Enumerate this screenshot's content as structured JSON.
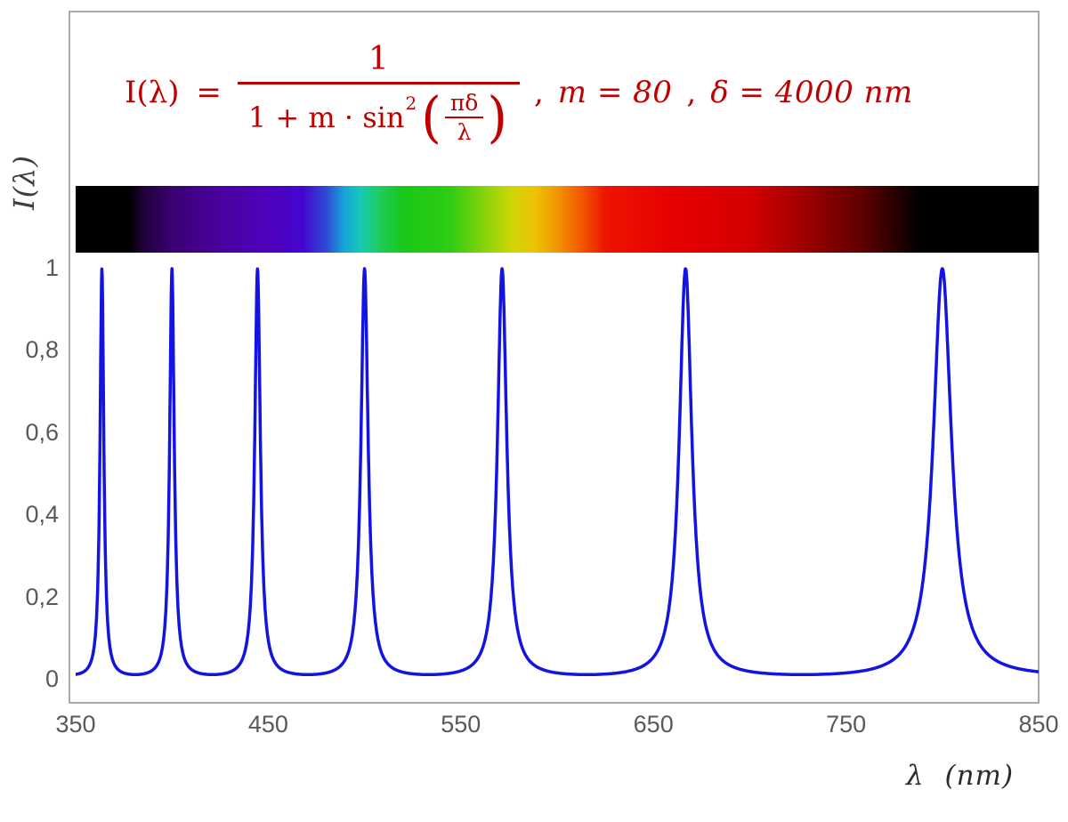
{
  "formula": {
    "lhs": "I(λ) =",
    "numerator": "1",
    "den_prefix": "1 + m · sin",
    "den_exponent": "2",
    "open_paren": "(",
    "close_paren": ")",
    "inner_numerator": "πδ",
    "inner_denominator": "λ",
    "comma1": ",",
    "m_param": "m = 80",
    "comma2": ",",
    "delta_param": "δ = 4000 nm"
  },
  "axes": {
    "ylabel": "I(λ)",
    "xlabel": "λ  (nm)"
  },
  "chart_data": {
    "type": "line",
    "title": "I(λ) = 1 / (1 + m·sin²(πδ/λ)) ,  m = 80 ,  δ = 4000 nm",
    "xlabel": "λ (nm)",
    "ylabel": "I(λ)",
    "xlim": [
      350,
      850
    ],
    "ylim": [
      0,
      1
    ],
    "grid": false,
    "legend": false,
    "x_ticks": [
      {
        "value": 350,
        "label": "350"
      },
      {
        "value": 450,
        "label": "450"
      },
      {
        "value": 550,
        "label": "550"
      },
      {
        "value": 650,
        "label": "650"
      },
      {
        "value": 750,
        "label": "750"
      },
      {
        "value": 850,
        "label": "850"
      }
    ],
    "y_ticks": [
      {
        "value": 0,
        "label": "0"
      },
      {
        "value": 0.2,
        "label": "0,2"
      },
      {
        "value": 0.4,
        "label": "0,4"
      },
      {
        "value": 0.6,
        "label": "0,6"
      },
      {
        "value": 0.8,
        "label": "0,8"
      },
      {
        "value": 1,
        "label": "1"
      }
    ],
    "function": "I(lambda) = 1 / (1 + m * sin(pi*delta/lambda)^2)",
    "params": {
      "m": 80,
      "delta_nm": 4000
    },
    "sample_step_nm": 0.2,
    "peaks_nm": [
      363.64,
      400.0,
      444.44,
      500.0,
      571.43,
      666.67,
      800.0
    ],
    "peak_value": 1.0,
    "baseline_value": 0.0123,
    "curve_color": "#1414e0",
    "curve_width": 3.5,
    "formula_color": "#c00000",
    "tick_color": "#595959",
    "border_color": "#a9a9a9",
    "spectrum_bar": {
      "visible_range_nm": [
        380,
        780
      ],
      "stops": [
        {
          "nm": 350,
          "color": "#000000"
        },
        {
          "nm": 378,
          "color": "#000000"
        },
        {
          "nm": 385,
          "color": "#1e0138"
        },
        {
          "nm": 400,
          "color": "#3a0173"
        },
        {
          "nm": 425,
          "color": "#4a019e"
        },
        {
          "nm": 450,
          "color": "#5001be"
        },
        {
          "nm": 468,
          "color": "#4406cf"
        },
        {
          "nm": 480,
          "color": "#2f4ad6"
        },
        {
          "nm": 490,
          "color": "#15a8d8"
        },
        {
          "nm": 498,
          "color": "#17c8b4"
        },
        {
          "nm": 507,
          "color": "#1ecc62"
        },
        {
          "nm": 520,
          "color": "#18c818"
        },
        {
          "nm": 545,
          "color": "#30cc12"
        },
        {
          "nm": 562,
          "color": "#86d40c"
        },
        {
          "nm": 576,
          "color": "#cdd606"
        },
        {
          "nm": 588,
          "color": "#ecc403"
        },
        {
          "nm": 598,
          "color": "#f29e02"
        },
        {
          "nm": 612,
          "color": "#f25a00"
        },
        {
          "nm": 625,
          "color": "#ee1400"
        },
        {
          "nm": 660,
          "color": "#e60000"
        },
        {
          "nm": 700,
          "color": "#d40000"
        },
        {
          "nm": 730,
          "color": "#9c0000"
        },
        {
          "nm": 760,
          "color": "#5a0000"
        },
        {
          "nm": 778,
          "color": "#210000"
        },
        {
          "nm": 788,
          "color": "#000000"
        },
        {
          "nm": 850,
          "color": "#000000"
        }
      ]
    }
  }
}
